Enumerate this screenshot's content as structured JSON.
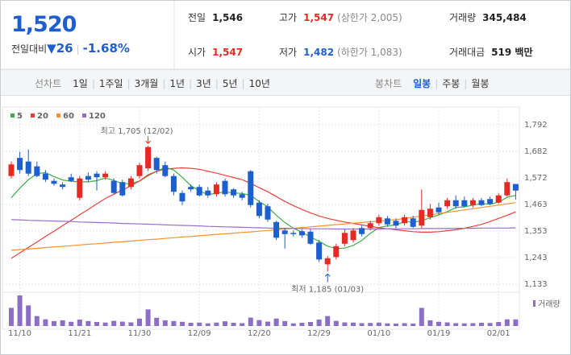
{
  "header": {
    "price": "1,520",
    "change_label": "전일대비",
    "change_arrow": "▼",
    "change": "26",
    "change_pct": "-1.68%",
    "stats": [
      {
        "label": "전일",
        "value": "1,546",
        "color": "#222"
      },
      {
        "label": "고가",
        "value": "1,547",
        "note": "(상한가 2,005)",
        "color": "#e32b23"
      },
      {
        "label": "거래량",
        "value": "345,484",
        "color": "#222"
      },
      {
        "label": "시가",
        "value": "1,547",
        "color": "#e32b23"
      },
      {
        "label": "저가",
        "value": "1,482",
        "note": "(하한가 1,083)",
        "color": "#1d5fcf"
      },
      {
        "label": "거래대금",
        "value": "519 백만",
        "color": "#222"
      }
    ]
  },
  "tabs": {
    "line_label": "선차트",
    "line_periods": [
      "1일",
      "1주일",
      "3개월",
      "1년",
      "3년",
      "5년",
      "10년"
    ],
    "candle_label": "봉차트",
    "candle_periods": [
      "일봉",
      "주봉",
      "월봉"
    ]
  },
  "chart_data": {
    "type": "candlestick",
    "up_color": "#e32b23",
    "down_color": "#1d5fcf",
    "grid": true,
    "categories": [
      null,
      "11/10",
      null,
      null,
      null,
      null,
      null,
      null,
      "11/21",
      null,
      null,
      null,
      null,
      null,
      null,
      "11/30",
      null,
      null,
      null,
      null,
      null,
      null,
      "12/09",
      null,
      null,
      null,
      null,
      null,
      null,
      "12/20",
      null,
      null,
      null,
      null,
      null,
      null,
      "12/29",
      null,
      null,
      null,
      null,
      null,
      null,
      "01/10",
      null,
      null,
      null,
      null,
      null,
      null,
      "01/19",
      null,
      null,
      null,
      null,
      null,
      null,
      "02/01",
      null,
      null
    ],
    "open": [
      1580,
      1655,
      1640,
      1620,
      1590,
      1560,
      1545,
      1575,
      1490,
      1580,
      1590,
      1575,
      1560,
      1555,
      1535,
      1580,
      1612,
      1655,
      1625,
      1580,
      1510,
      1535,
      1535,
      1520,
      1505,
      1560,
      1525,
      1505,
      1600,
      1470,
      1455,
      1390,
      1355,
      1345,
      1352,
      1350,
      1305,
      1215,
      1245,
      1300,
      1315,
      1365,
      1365,
      1385,
      1405,
      1395,
      1385,
      1405,
      1375,
      1410,
      1450,
      1455,
      1480,
      1480,
      1460,
      1480,
      1485,
      1470,
      1500,
      1547
    ],
    "high": [
      1640,
      1680,
      1690,
      1640,
      1605,
      1570,
      1555,
      1590,
      1580,
      1595,
      1600,
      1600,
      1570,
      1565,
      1580,
      1635,
      1705,
      1660,
      1640,
      1590,
      1520,
      1545,
      1545,
      1535,
      1555,
      1570,
      1530,
      1515,
      1605,
      1480,
      1465,
      1395,
      1365,
      1355,
      1360,
      1360,
      1315,
      1250,
      1300,
      1360,
      1365,
      1375,
      1395,
      1420,
      1415,
      1405,
      1420,
      1415,
      1525,
      1465,
      1470,
      1490,
      1500,
      1495,
      1490,
      1490,
      1495,
      1510,
      1570,
      1547
    ],
    "low": [
      1570,
      1590,
      1580,
      1575,
      1555,
      1540,
      1525,
      1555,
      1480,
      1555,
      1520,
      1565,
      1505,
      1495,
      1525,
      1570,
      1600,
      1590,
      1575,
      1500,
      1460,
      1515,
      1495,
      1490,
      1495,
      1495,
      1490,
      1480,
      1450,
      1405,
      1390,
      1315,
      1280,
      1330,
      1325,
      1295,
      1225,
      1185,
      1235,
      1290,
      1305,
      1330,
      1355,
      1375,
      1370,
      1365,
      1375,
      1365,
      1365,
      1400,
      1420,
      1445,
      1445,
      1450,
      1450,
      1455,
      1460,
      1465,
      1495,
      1482
    ],
    "close": [
      1628,
      1605,
      1590,
      1580,
      1565,
      1548,
      1535,
      1560,
      1570,
      1565,
      1575,
      1590,
      1510,
      1500,
      1570,
      1625,
      1700,
      1605,
      1580,
      1515,
      1475,
      1525,
      1500,
      1500,
      1545,
      1505,
      1500,
      1490,
      1460,
      1415,
      1400,
      1325,
      1340,
      1340,
      1335,
      1300,
      1235,
      1240,
      1290,
      1345,
      1355,
      1340,
      1385,
      1410,
      1380,
      1375,
      1410,
      1370,
      1440,
      1445,
      1430,
      1480,
      1455,
      1455,
      1480,
      1460,
      1465,
      1500,
      1555,
      1520
    ],
    "series": [
      {
        "name": "5",
        "color": "#3cb043",
        "values": [
          1490,
          1530,
          1565,
          1590,
          1594,
          1578,
          1564,
          1558,
          1556,
          1556,
          1561,
          1572,
          1562,
          1548,
          1549,
          1559,
          1581,
          1600,
          1616,
          1605,
          1575,
          1540,
          1519,
          1503,
          1509,
          1515,
          1510,
          1508,
          1500,
          1474,
          1453,
          1418,
          1388,
          1364,
          1348,
          1328,
          1310,
          1290,
          1280,
          1282,
          1293,
          1314,
          1343,
          1367,
          1374,
          1378,
          1392,
          1389,
          1395,
          1408,
          1419,
          1433,
          1450,
          1453,
          1460,
          1466,
          1463,
          1472,
          1492,
          1500
        ]
      },
      {
        "name": "20",
        "color": "#e8413c",
        "values": [
          1240,
          1262,
          1285,
          1307,
          1330,
          1352,
          1375,
          1397,
          1420,
          1442,
          1465,
          1487,
          1505,
          1522,
          1540,
          1560,
          1585,
          1600,
          1608,
          1612,
          1614,
          1612,
          1608,
          1600,
          1592,
          1583,
          1574,
          1565,
          1550,
          1532,
          1515,
          1495,
          1475,
          1458,
          1442,
          1428,
          1415,
          1405,
          1397,
          1390,
          1384,
          1378,
          1372,
          1366,
          1362,
          1358,
          1354,
          1350,
          1348,
          1348,
          1350,
          1354,
          1358,
          1364,
          1372,
          1380,
          1392,
          1405,
          1418,
          1432
        ]
      },
      {
        "name": "60",
        "color": "#f5922f",
        "values": [
          1273,
          1276,
          1278,
          1281,
          1284,
          1287,
          1289,
          1292,
          1295,
          1298,
          1300,
          1303,
          1306,
          1308,
          1311,
          1314,
          1317,
          1319,
          1322,
          1325,
          1328,
          1330,
          1333,
          1336,
          1339,
          1341,
          1344,
          1347,
          1349,
          1352,
          1355,
          1358,
          1361,
          1364,
          1367,
          1370,
          1373,
          1376,
          1379,
          1382,
          1385,
          1388,
          1391,
          1394,
          1397,
          1400,
          1405,
          1410,
          1415,
          1420,
          1425,
          1430,
          1435,
          1440,
          1445,
          1450,
          1455,
          1460,
          1465,
          1470
        ]
      },
      {
        "name": "120",
        "color": "#9b6bcc",
        "values": [
          1400,
          1399,
          1397,
          1396,
          1395,
          1394,
          1393,
          1392,
          1390,
          1389,
          1388,
          1387,
          1386,
          1384,
          1383,
          1382,
          1381,
          1380,
          1378,
          1377,
          1376,
          1375,
          1374,
          1372,
          1371,
          1370,
          1369,
          1368,
          1367,
          1366,
          1365,
          1364,
          1364,
          1363,
          1363,
          1362,
          1362,
          1362,
          1361,
          1361,
          1361,
          1361,
          1361,
          1361,
          1362,
          1362,
          1362,
          1362,
          1363,
          1363,
          1363,
          1363,
          1364,
          1364,
          1364,
          1365,
          1365,
          1365,
          1365,
          1366
        ]
      }
    ],
    "volume": {
      "name": "거래량",
      "color": "#8a6fc4",
      "values": [
        950000,
        1600000,
        1080000,
        520000,
        350000,
        260000,
        300000,
        220000,
        340000,
        260000,
        210000,
        180000,
        270000,
        230000,
        190000,
        390000,
        870000,
        430000,
        300000,
        260000,
        220000,
        170000,
        180000,
        140000,
        180000,
        250000,
        170000,
        150000,
        440000,
        310000,
        230000,
        390000,
        260000,
        140000,
        170000,
        210000,
        340000,
        520000,
        270000,
        190000,
        180000,
        150000,
        160000,
        180000,
        140000,
        130000,
        150000,
        130000,
        950000,
        300000,
        220000,
        190000,
        150000,
        140000,
        150000,
        170000,
        160000,
        210000,
        350000,
        345484
      ]
    },
    "ylim": [
      1133,
      1792
    ],
    "yticks": [
      {
        "value": 1133,
        "label": "1,133"
      },
      {
        "value": 1243,
        "label": "1,243"
      },
      {
        "value": 1353,
        "label": "1,353"
      },
      {
        "value": 1463,
        "label": "1,463"
      },
      {
        "value": 1572,
        "label": "1,572"
      },
      {
        "value": 1682,
        "label": "1,682"
      },
      {
        "value": 1792,
        "label": "1,792"
      }
    ],
    "annotations": [
      {
        "text": "최고 1,705 (12/02)",
        "color": "#e32b23"
      },
      {
        "text": "최저 1,185 (01/03)",
        "color": "#1d5fcf"
      }
    ]
  }
}
